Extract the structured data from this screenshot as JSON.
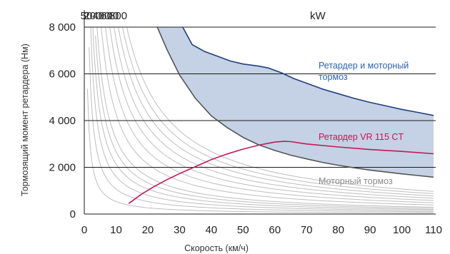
{
  "chart_data": {
    "type": "line",
    "xlabel": "Скорость (км/ч)",
    "ylabel": "Тормозящий момент ретардера (Нм)",
    "xlim": [
      0,
      110
    ],
    "ylim": [
      0,
      8000
    ],
    "x_ticks": [
      "0",
      "10",
      "20",
      "30",
      "40",
      "50",
      "60",
      "70",
      "80",
      "90",
      "100",
      "110"
    ],
    "y_ticks": [
      "0",
      "2 000",
      "4 000",
      "6 000",
      "8 000"
    ],
    "y_tick_values": [
      0,
      2000,
      4000,
      6000,
      8000
    ],
    "power_unit": "kW",
    "power_labels": [
      {
        "label": "50",
        "kw": 50
      },
      {
        "label": "200",
        "kw": 200
      },
      {
        "label": "400",
        "kw": 400
      },
      {
        "label": "600",
        "kw": 600
      },
      {
        "label": "800",
        "kw": 800
      }
    ],
    "iso_power_kw": [
      50,
      100,
      150,
      200,
      250,
      300,
      400,
      500,
      600,
      700,
      800,
      900,
      1000
    ],
    "series": [
      {
        "name": "Ретардер и моторный тормоз",
        "name_lines": [
          "Ретардер и моторный",
          "тормоз"
        ],
        "color": "#1f3f7f",
        "x": [
          31,
          34,
          38,
          42,
          46,
          50,
          55,
          58,
          62,
          66,
          70,
          75,
          80,
          85,
          90,
          95,
          100,
          105,
          110
        ],
        "y": [
          8000,
          7250,
          6950,
          6750,
          6550,
          6420,
          6330,
          6250,
          6050,
          5800,
          5600,
          5350,
          5150,
          4950,
          4780,
          4630,
          4480,
          4350,
          4220
        ]
      },
      {
        "name": "Ретардер VR 115 CT",
        "color": "#c3185b",
        "x": [
          14,
          18,
          22,
          26,
          30,
          35,
          40,
          45,
          50,
          55,
          60,
          63,
          65,
          70,
          80,
          90,
          100,
          110
        ],
        "y": [
          450,
          850,
          1180,
          1470,
          1730,
          2030,
          2330,
          2570,
          2780,
          2950,
          3080,
          3110,
          3100,
          3000,
          2870,
          2760,
          2680,
          2580
        ]
      },
      {
        "name": "Моторный тормоз",
        "color": "#555555",
        "x": [
          23,
          26,
          30,
          35,
          40,
          45,
          50,
          55,
          60,
          65,
          70,
          75,
          80,
          85,
          90,
          95,
          100,
          105,
          110
        ],
        "y": [
          8000,
          7050,
          5950,
          4950,
          4200,
          3700,
          3280,
          2960,
          2720,
          2520,
          2360,
          2210,
          2090,
          1980,
          1880,
          1800,
          1720,
          1650,
          1580
        ]
      }
    ],
    "fill_between": [
      "Моторный тормоз",
      "Ретардер и моторный тормоз"
    ],
    "fill_color": "#c5d1e4",
    "grid": "horizontal"
  }
}
